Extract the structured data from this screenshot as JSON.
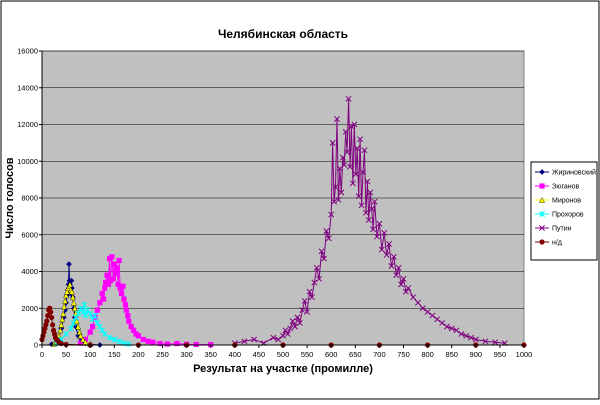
{
  "chart_data": {
    "type": "scatter",
    "title": "Челябинская область",
    "xlabel": "Результат на участке (промилле)",
    "ylabel": "Число голосов",
    "xlim": [
      0,
      1000
    ],
    "ylim": [
      0,
      16000
    ],
    "x_ticks": [
      0,
      50,
      100,
      150,
      200,
      250,
      300,
      350,
      400,
      450,
      500,
      550,
      600,
      650,
      700,
      750,
      800,
      850,
      900,
      950,
      1000
    ],
    "y_ticks": [
      0,
      2000,
      4000,
      6000,
      8000,
      10000,
      12000,
      14000,
      16000
    ],
    "grid": true,
    "legend_position": "right",
    "series": [
      {
        "name": "Жириновский",
        "color": "#000080",
        "marker": "diamond",
        "x": [
          20,
          30,
          35,
          40,
          45,
          48,
          50,
          52,
          54,
          55,
          56,
          57,
          58,
          59,
          60,
          61,
          62,
          64,
          66,
          68,
          70,
          75,
          80,
          90,
          100,
          120
        ],
        "y": [
          40,
          150,
          400,
          900,
          1500,
          1900,
          2300,
          2700,
          3000,
          3300,
          4400,
          3500,
          3300,
          3000,
          2800,
          3500,
          3100,
          2600,
          2000,
          1500,
          1000,
          500,
          200,
          80,
          30,
          0
        ]
      },
      {
        "name": "Зюганов",
        "color": "#ff00ff",
        "marker": "square",
        "x": [
          80,
          90,
          100,
          105,
          110,
          115,
          120,
          125,
          128,
          130,
          132,
          135,
          138,
          140,
          142,
          145,
          148,
          150,
          152,
          155,
          158,
          160,
          162,
          165,
          168,
          170,
          173,
          175,
          178,
          180,
          185,
          190,
          195,
          200,
          210,
          220,
          230,
          245,
          260,
          280,
          300,
          320,
          350
        ],
        "y": [
          100,
          300,
          700,
          1000,
          1500,
          1900,
          2300,
          2800,
          2500,
          3100,
          3400,
          3800,
          3300,
          4700,
          3500,
          4800,
          3600,
          4400,
          3900,
          4200,
          3300,
          4600,
          3100,
          2800,
          3200,
          2500,
          2200,
          1900,
          1600,
          1300,
          1000,
          800,
          600,
          500,
          300,
          200,
          150,
          80,
          50,
          80,
          40,
          30,
          20
        ]
      },
      {
        "name": "Миронов",
        "color": "#ffff00",
        "marker": "triangle",
        "x": [
          25,
          30,
          35,
          38,
          40,
          42,
          44,
          46,
          48,
          50,
          52,
          54,
          56,
          58,
          60,
          62,
          64,
          66,
          68,
          70,
          72,
          75,
          78,
          80,
          85,
          90,
          100
        ],
        "y": [
          60,
          200,
          500,
          800,
          1100,
          1400,
          1700,
          2100,
          2400,
          2700,
          2900,
          3100,
          3200,
          3300,
          3000,
          2900,
          2600,
          2300,
          2000,
          1700,
          1300,
          1000,
          700,
          500,
          300,
          150,
          50
        ]
      },
      {
        "name": "Прохоров",
        "color": "#00ffff",
        "marker": "star",
        "x": [
          30,
          40,
          50,
          60,
          65,
          70,
          75,
          80,
          85,
          88,
          90,
          95,
          100,
          105,
          110,
          115,
          120,
          125,
          130,
          140,
          150,
          160,
          170,
          180
        ],
        "y": [
          100,
          300,
          600,
          900,
          1200,
          1500,
          1700,
          2000,
          1800,
          2200,
          1600,
          1900,
          1700,
          1400,
          1600,
          1200,
          1000,
          800,
          600,
          400,
          300,
          200,
          100,
          50
        ]
      },
      {
        "name": "Путин",
        "color": "#800080",
        "marker": "x",
        "x": [
          400,
          420,
          440,
          460,
          480,
          490,
          500,
          505,
          510,
          515,
          520,
          525,
          530,
          535,
          540,
          545,
          550,
          555,
          560,
          565,
          570,
          575,
          580,
          585,
          590,
          595,
          600,
          603,
          606,
          609,
          612,
          615,
          618,
          621,
          624,
          627,
          630,
          633,
          636,
          639,
          642,
          645,
          648,
          651,
          654,
          657,
          660,
          663,
          666,
          669,
          672,
          675,
          678,
          681,
          684,
          687,
          690,
          695,
          700,
          705,
          710,
          715,
          720,
          725,
          730,
          735,
          740,
          745,
          750,
          755,
          760,
          770,
          780,
          790,
          800,
          810,
          820,
          830,
          840,
          850,
          860,
          870,
          880,
          890,
          900,
          920,
          940,
          960
        ],
        "y": [
          100,
          200,
          300,
          100,
          400,
          300,
          500,
          800,
          600,
          900,
          1300,
          1000,
          1500,
          1200,
          1900,
          2400,
          1800,
          2900,
          2600,
          3400,
          4200,
          3600,
          5100,
          4700,
          6200,
          5800,
          7100,
          11000,
          7800,
          8600,
          12300,
          7900,
          9600,
          8300,
          10200,
          9800,
          11600,
          10500,
          13400,
          9700,
          11900,
          8800,
          12000,
          9300,
          10700,
          8100,
          11200,
          7600,
          9400,
          10600,
          7200,
          8900,
          6800,
          8300,
          7400,
          6300,
          7800,
          5900,
          6600,
          5200,
          6100,
          4900,
          5500,
          4300,
          4800,
          3800,
          4200,
          3300,
          3600,
          2900,
          3100,
          2600,
          2300,
          2000,
          1800,
          1600,
          1400,
          1200,
          1000,
          900,
          800,
          600,
          500,
          400,
          300,
          200,
          150,
          100
        ]
      },
      {
        "name": "н/д",
        "color": "#800000",
        "marker": "circle",
        "x": [
          0,
          2,
          4,
          6,
          8,
          10,
          12,
          14,
          16,
          18,
          20,
          22,
          24,
          26,
          28,
          30,
          35,
          40,
          50,
          100,
          200,
          300,
          400,
          500,
          600,
          700,
          800,
          900,
          1000
        ],
        "y": [
          300,
          500,
          700,
          900,
          1100,
          1300,
          1600,
          1900,
          2000,
          1800,
          1500,
          1100,
          800,
          600,
          400,
          300,
          150,
          80,
          30,
          0,
          0,
          0,
          0,
          0,
          0,
          0,
          0,
          0,
          0
        ]
      }
    ]
  }
}
